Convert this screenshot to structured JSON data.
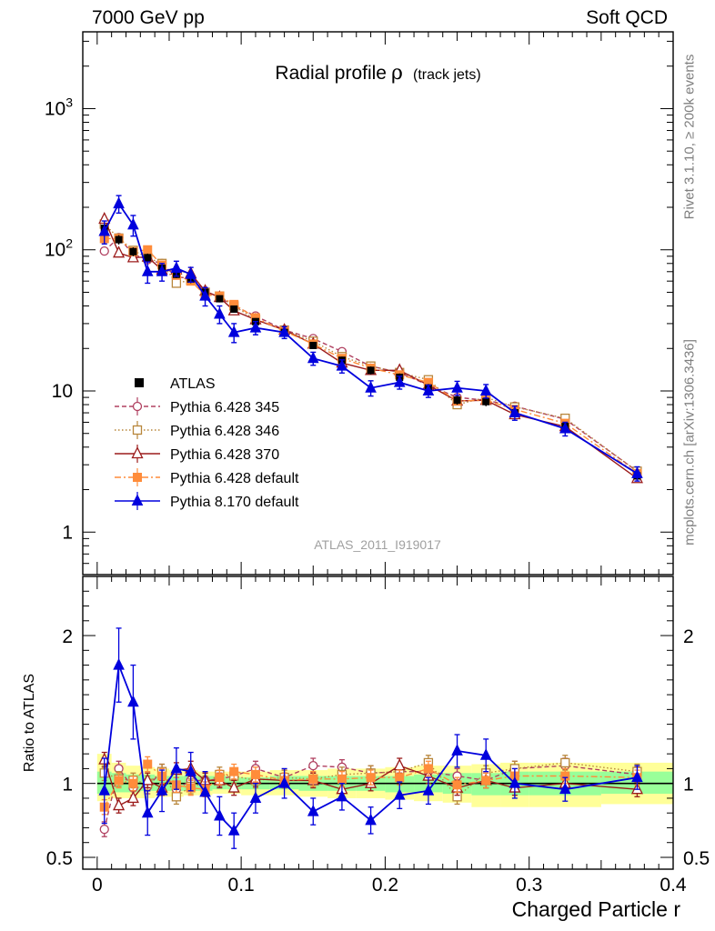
{
  "header": {
    "energy": "7000 GeV pp",
    "process": "Soft QCD"
  },
  "side": {
    "rivet": "Rivet 3.1.10, ≥ 200k events",
    "source": "mcplots.cern.ch [arXiv:1306.3436]"
  },
  "colors": {
    "atlas": "#000000",
    "p345": "#b04060",
    "p346": "#b8863b",
    "p370": "#9b1b1b",
    "pdefault": "#ff8c3a",
    "p8": "#0000dd",
    "band_outer": "#ffff99",
    "band_inner": "#99ff99"
  },
  "chart_data": [
    {
      "type": "line",
      "title": "Radial profile",
      "title_symbol": "ρ",
      "title_suffix": "(track jets)",
      "analysis_label": "ATLAS_2011_I919017",
      "yscale": "log",
      "ylim": [
        0.5,
        3500
      ],
      "xlim": [
        -0.01,
        0.4
      ],
      "y_ticks": [
        {
          "value": 1,
          "base": "1",
          "exp": ""
        },
        {
          "value": 10,
          "base": "10",
          "exp": ""
        },
        {
          "value": 100,
          "base": "10",
          "exp": "2"
        },
        {
          "value": 1000,
          "base": "10",
          "exp": "3"
        }
      ],
      "x": [
        0.005,
        0.015,
        0.025,
        0.035,
        0.045,
        0.055,
        0.065,
        0.075,
        0.085,
        0.095,
        0.11,
        0.13,
        0.15,
        0.17,
        0.19,
        0.21,
        0.23,
        0.25,
        0.27,
        0.29,
        0.325,
        0.375
      ],
      "series": [
        {
          "name": "ATLAS",
          "style": "data",
          "color_key": "atlas",
          "values": [
            142,
            118,
            97,
            88,
            74,
            67,
            62,
            50,
            45,
            38,
            31,
            26,
            21,
            16.5,
            14,
            12.5,
            10.5,
            8.6,
            8.4,
            7.0,
            5.6,
            2.5
          ],
          "errors": [
            12,
            9,
            7,
            6,
            5,
            4,
            4,
            3,
            2.6,
            2.2,
            1.8,
            1.5,
            1.2,
            1.0,
            0.9,
            0.8,
            0.7,
            0.6,
            0.6,
            0.5,
            0.4,
            0.2
          ]
        },
        {
          "name": "Pythia 6.428 345",
          "style": "dashed",
          "marker": "circle-open",
          "color_key": "p345",
          "values": [
            98,
            122,
            93,
            85,
            80,
            64,
            63,
            51,
            46,
            40,
            34,
            27,
            23.5,
            19,
            15,
            13.5,
            11,
            9.0,
            8.6,
            7.8,
            6.3,
            2.7
          ]
        },
        {
          "name": "Pythia 6.428 346",
          "style": "dotted",
          "marker": "square-open",
          "color_key": "p346",
          "values": [
            152,
            121,
            99,
            88,
            80,
            58,
            61,
            50,
            47,
            40,
            32,
            27,
            22.5,
            17.5,
            15,
            13.5,
            12,
            8.0,
            9.0,
            7.7,
            6.4,
            2.7
          ]
        },
        {
          "name": "Pythia 6.428 370",
          "style": "solid",
          "marker": "triangle-open",
          "color_key": "p370",
          "values": [
            165,
            95,
            88,
            89,
            72,
            72,
            68,
            51,
            46,
            37,
            32,
            27,
            21.5,
            15.8,
            14,
            14,
            11,
            8.5,
            8.6,
            6.8,
            5.6,
            2.4
          ]
        },
        {
          "name": "Pythia 6.428 default",
          "style": "dashdot",
          "marker": "square-filled",
          "color_key": "pdefault",
          "values": [
            120,
            120,
            97,
            100,
            78,
            66,
            60,
            48,
            47,
            41,
            33,
            26.5,
            21.5,
            17,
            14.5,
            13,
            11.5,
            8.5,
            8.6,
            7.4,
            5.9,
            2.6
          ]
        },
        {
          "name": "Pythia 8.170 default",
          "style": "solid",
          "marker": "triangle-filled",
          "color_key": "p8",
          "values": [
            135,
            212,
            150,
            70,
            70,
            74,
            67,
            47,
            35,
            26,
            28,
            26,
            17,
            15,
            10.5,
            11.5,
            10,
            10.5,
            10,
            7.0,
            5.4,
            2.6
          ],
          "errors": [
            25,
            30,
            25,
            12,
            10,
            9,
            8,
            7,
            5,
            4,
            3,
            2.5,
            1.8,
            1.6,
            1.3,
            1.2,
            1.0,
            1.2,
            1.1,
            0.8,
            0.6,
            0.3
          ]
        }
      ]
    },
    {
      "type": "line",
      "ylabel": "Ratio to ATLAS",
      "xlabel": "Charged Particle r",
      "ylim": [
        0.42,
        2.4
      ],
      "xlim": [
        -0.01,
        0.4
      ],
      "y_ticks": [
        {
          "value": 0.5,
          "label": "0.5"
        },
        {
          "value": 1,
          "label": "1"
        },
        {
          "value": 2,
          "label": "2"
        }
      ],
      "x_ticks": [
        {
          "value": 0,
          "label": "0"
        },
        {
          "value": 0.1,
          "label": "0.1"
        },
        {
          "value": 0.2,
          "label": "0.2"
        },
        {
          "value": 0.3,
          "label": "0.3"
        },
        {
          "value": 0.4,
          "label": "0.4"
        }
      ],
      "bin_edges": [
        0.0,
        0.01,
        0.02,
        0.03,
        0.04,
        0.05,
        0.06,
        0.07,
        0.08,
        0.09,
        0.1,
        0.12,
        0.14,
        0.16,
        0.18,
        0.2,
        0.22,
        0.24,
        0.26,
        0.28,
        0.3,
        0.35,
        0.4
      ],
      "band_outer_lo": [
        0.88,
        0.9,
        0.9,
        0.9,
        0.91,
        0.91,
        0.92,
        0.92,
        0.93,
        0.93,
        0.92,
        0.92,
        0.91,
        0.9,
        0.9,
        0.89,
        0.88,
        0.87,
        0.84,
        0.84,
        0.84,
        0.86
      ],
      "band_outer_hi": [
        1.2,
        1.14,
        1.12,
        1.11,
        1.1,
        1.09,
        1.09,
        1.08,
        1.08,
        1.08,
        1.08,
        1.09,
        1.09,
        1.1,
        1.1,
        1.11,
        1.12,
        1.12,
        1.13,
        1.14,
        1.14,
        1.14
      ],
      "band_inner_lo": [
        0.93,
        0.94,
        0.94,
        0.95,
        0.95,
        0.95,
        0.95,
        0.95,
        0.96,
        0.96,
        0.96,
        0.96,
        0.95,
        0.95,
        0.95,
        0.94,
        0.94,
        0.93,
        0.92,
        0.92,
        0.92,
        0.93
      ],
      "band_inner_hi": [
        1.08,
        1.07,
        1.06,
        1.06,
        1.05,
        1.05,
        1.05,
        1.05,
        1.05,
        1.04,
        1.04,
        1.05,
        1.05,
        1.05,
        1.05,
        1.05,
        1.06,
        1.07,
        1.07,
        1.08,
        1.08,
        1.08
      ],
      "x": [
        0.005,
        0.015,
        0.025,
        0.035,
        0.045,
        0.055,
        0.065,
        0.075,
        0.085,
        0.095,
        0.11,
        0.13,
        0.15,
        0.17,
        0.19,
        0.21,
        0.23,
        0.25,
        0.27,
        0.29,
        0.325,
        0.375
      ],
      "series": [
        {
          "name": "Pythia 6.428 345",
          "color_key": "p345",
          "style": "dashed",
          "marker": "circle-open",
          "values": [
            0.69,
            1.1,
            0.97,
            0.98,
            1.08,
            0.96,
            1.02,
            1.02,
            1.03,
            1.05,
            1.1,
            1.04,
            1.12,
            1.11,
            1.07,
            1.08,
            1.08,
            1.05,
            1.02,
            1.1,
            1.12,
            1.06
          ]
        },
        {
          "name": "Pythia 6.428 346",
          "color_key": "p346",
          "style": "dotted",
          "marker": "square-open",
          "values": [
            1.07,
            1.03,
            1.02,
            1.0,
            1.08,
            0.91,
            0.98,
            1.0,
            1.06,
            1.05,
            1.02,
            1.04,
            1.03,
            1.06,
            1.07,
            1.08,
            1.14,
            0.91,
            1.07,
            1.1,
            1.14,
            1.08
          ]
        },
        {
          "name": "Pythia 6.428 370",
          "color_key": "p370",
          "style": "solid",
          "marker": "triangle-open",
          "values": [
            1.16,
            0.85,
            0.9,
            1.02,
            0.97,
            1.09,
            1.1,
            1.02,
            1.02,
            0.97,
            1.03,
            1.02,
            1.02,
            0.96,
            1.0,
            1.12,
            1.05,
            0.97,
            1.02,
            0.97,
            1.0,
            0.96
          ]
        },
        {
          "name": "Pythia 6.428 default",
          "color_key": "pdefault",
          "style": "dashdot",
          "marker": "square-filled",
          "values": [
            0.84,
            1.02,
            1.0,
            1.13,
            1.05,
            0.99,
            0.97,
            0.96,
            1.04,
            1.08,
            1.06,
            1.02,
            1.03,
            1.03,
            1.04,
            1.04,
            1.1,
            0.99,
            1.02,
            1.05,
            1.05,
            1.04
          ]
        },
        {
          "name": "Pythia 8.170 default",
          "color_key": "p8",
          "style": "solid",
          "marker": "triangle-filled",
          "values": [
            0.95,
            1.8,
            1.55,
            0.8,
            0.95,
            1.1,
            1.08,
            0.94,
            0.78,
            0.68,
            0.9,
            1.0,
            0.81,
            0.91,
            0.75,
            0.92,
            0.95,
            1.22,
            1.19,
            1.0,
            0.96,
            1.04
          ],
          "errors": [
            0.22,
            0.25,
            0.25,
            0.15,
            0.14,
            0.14,
            0.13,
            0.14,
            0.13,
            0.12,
            0.1,
            0.1,
            0.09,
            0.09,
            0.09,
            0.09,
            0.09,
            0.11,
            0.11,
            0.1,
            0.08,
            0.08
          ]
        }
      ]
    }
  ]
}
